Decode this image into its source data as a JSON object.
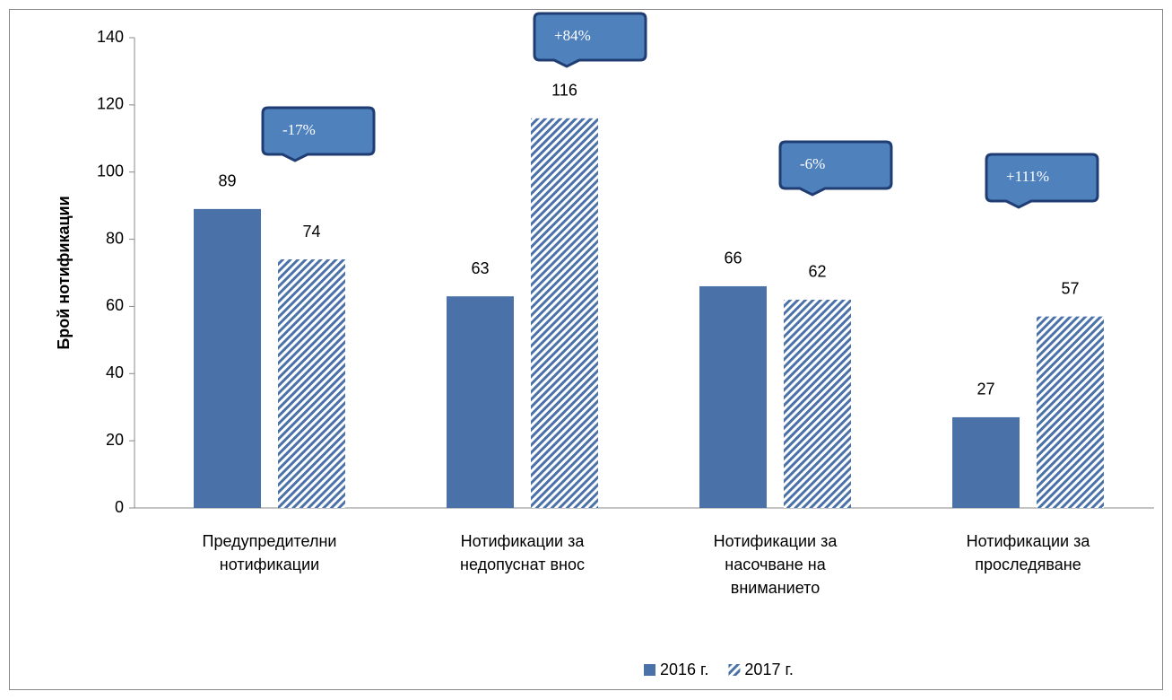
{
  "chart_data": {
    "type": "bar",
    "y_label": "Брой нотификации",
    "categories": [
      "Предупредителни нотификации",
      "Нотификации за недопуснат внос",
      "Нотификации за насочване на вниманието",
      "Нотификации за проследяване"
    ],
    "series": [
      {
        "name": "2016 г.",
        "color": "#4a72a8",
        "values": [
          89,
          63,
          66,
          27
        ]
      },
      {
        "name": "2017 г.",
        "color": "#4a72a8",
        "pattern": "hatch",
        "values": [
          74,
          116,
          62,
          57
        ]
      }
    ],
    "annotations": [
      "-17%",
      "+84%",
      "-6%",
      "+111%"
    ],
    "ylim": [
      0,
      140
    ],
    "yticks": [
      0,
      20,
      40,
      60,
      80,
      100,
      120,
      140
    ],
    "legend": "bottom"
  }
}
